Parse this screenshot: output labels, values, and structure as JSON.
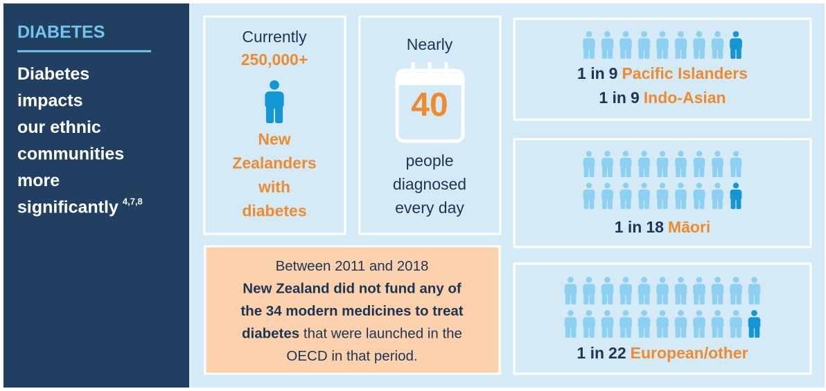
{
  "sidebar": {
    "heading": "DIABETES",
    "lines": [
      "Diabetes",
      "impacts",
      "our ethnic",
      "communities",
      "more",
      "significantly"
    ],
    "superscript": "4,7,8"
  },
  "prevalence": {
    "intro": "Currently",
    "figure": "250,000+",
    "lines": [
      "New",
      "Zealanders",
      "with",
      "diabetes"
    ]
  },
  "daily": {
    "intro": "Nearly",
    "figure": "40",
    "lines": [
      "people",
      "diagnosed",
      "every day"
    ]
  },
  "funding": {
    "lines": [
      [
        {
          "text": "Between 2011 and 2018",
          "bold": false
        }
      ],
      [
        {
          "text": "New Zealand did not fund any of",
          "bold": true
        }
      ],
      [
        {
          "text": "the 34 modern medicines to treat",
          "bold": true
        }
      ],
      [
        {
          "text": "diabetes",
          "bold": true
        },
        {
          "text": " that were launched in the",
          "bold": false
        }
      ],
      [
        {
          "text": "OECD in that period.",
          "bold": false
        }
      ]
    ]
  },
  "groups": [
    {
      "stats": [
        {
          "prefix": "1 in",
          "denominator": 9,
          "group": "Pacific Islanders"
        },
        {
          "prefix": "1 in",
          "denominator": 9,
          "group": "Indo-Asian"
        }
      ]
    },
    {
      "stats": [
        {
          "prefix": "1 in",
          "denominator": 18,
          "group": "Māori"
        }
      ]
    },
    {
      "stats": [
        {
          "prefix": "1 in",
          "denominator": 22,
          "group": "European/other"
        }
      ]
    }
  ]
}
